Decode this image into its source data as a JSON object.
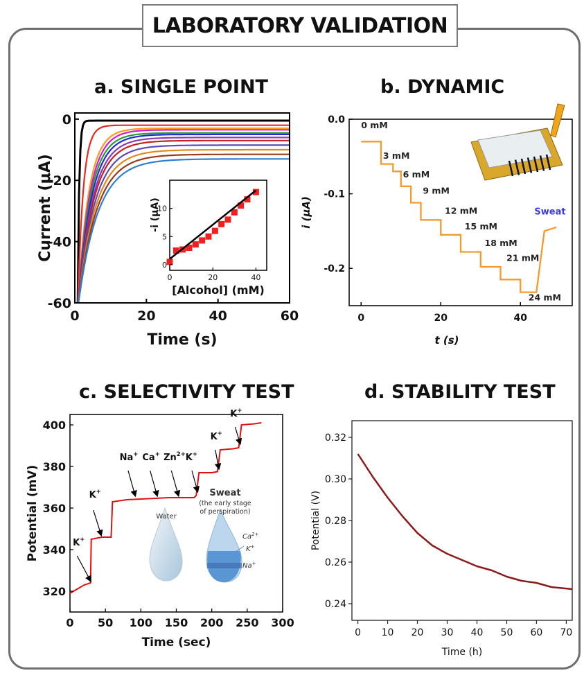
{
  "main_title": "LABORATORY VALIDATION",
  "panels": {
    "a": {
      "title": "a. SINGLE POINT"
    },
    "b": {
      "title": "b. DYNAMIC"
    },
    "c": {
      "title": "c. SELECTIVITY TEST"
    },
    "d": {
      "title": "d. STABILITY TEST"
    }
  },
  "chart_data": [
    {
      "id": "a",
      "type": "line",
      "xlabel": "Time (s)",
      "ylabel": "Current (μA)",
      "xlim": [
        0,
        60
      ],
      "ylim": [
        -60,
        2
      ],
      "xticks": [
        0,
        20,
        40,
        60
      ],
      "yticks": [
        0,
        -20,
        -40,
        -60
      ],
      "series": [
        {
          "color": "#000000",
          "steady": -0.5,
          "tau": 0.4
        },
        {
          "color": "#e8281c",
          "steady": -2.0,
          "tau": 1.5
        },
        {
          "color": "#ff9a1a",
          "steady": -3.0,
          "tau": 3.0
        },
        {
          "color": "#d11cd1",
          "steady": -3.5,
          "tau": 3.3
        },
        {
          "color": "#2b9b2b",
          "steady": -4.5,
          "tau": 3.5
        },
        {
          "color": "#1f2bd1",
          "steady": -5.0,
          "tau": 3.8
        },
        {
          "color": "#8a3ab5",
          "steady": -6.0,
          "tau": 4.1
        },
        {
          "color": "#c42020",
          "steady": -7.0,
          "tau": 4.3
        },
        {
          "color": "#5a4ab5",
          "steady": -8.5,
          "tau": 4.6
        },
        {
          "color": "#e08a1a",
          "steady": -10.0,
          "tau": 4.9
        },
        {
          "color": "#9a3a1a",
          "steady": -11.5,
          "tau": 5.2
        },
        {
          "color": "#2f7fd1",
          "steady": -13.0,
          "tau": 5.5
        }
      ],
      "inset": {
        "xlabel": "[Alcohol] (mM)",
        "ylabel": "-i (μA)",
        "xlim": [
          0,
          45
        ],
        "ylim": [
          -1,
          15
        ],
        "xticks": [
          0,
          20,
          40
        ],
        "yticks": [
          0,
          5,
          10
        ],
        "points": [
          [
            0,
            0.5
          ],
          [
            3,
            2.5
          ],
          [
            6,
            2.7
          ],
          [
            9,
            3.0
          ],
          [
            12,
            3.6
          ],
          [
            15,
            4.3
          ],
          [
            18,
            5.0
          ],
          [
            21,
            6.0
          ],
          [
            24,
            7.2
          ],
          [
            27,
            8.0
          ],
          [
            30,
            9.3
          ],
          [
            33,
            10.5
          ],
          [
            36,
            11.6
          ],
          [
            40,
            12.9
          ]
        ],
        "fit": [
          [
            0,
            1.0
          ],
          [
            40,
            13.2
          ]
        ]
      }
    },
    {
      "id": "b",
      "type": "line",
      "xlabel": "t (s)",
      "ylabel": "i (μA)",
      "xlim": [
        -3,
        53
      ],
      "ylim": [
        -0.25,
        0.0
      ],
      "xticks": [
        0,
        20,
        40
      ],
      "yticks": [
        0.0,
        -0.1,
        -0.2
      ],
      "ytick_labels": [
        "0.0",
        "-0.1",
        "-0.2"
      ],
      "color": "#f39a2c",
      "step_path": [
        [
          0,
          -0.03
        ],
        [
          5,
          -0.03
        ],
        [
          5,
          -0.06
        ],
        [
          8,
          -0.06
        ],
        [
          8,
          -0.07
        ],
        [
          10,
          -0.07
        ],
        [
          10,
          -0.09
        ],
        [
          12.5,
          -0.09
        ],
        [
          12.5,
          -0.112
        ],
        [
          15,
          -0.112
        ],
        [
          15,
          -0.135
        ],
        [
          20,
          -0.135
        ],
        [
          20,
          -0.155
        ],
        [
          25,
          -0.155
        ],
        [
          25,
          -0.178
        ],
        [
          30,
          -0.178
        ],
        [
          30,
          -0.198
        ],
        [
          35,
          -0.198
        ],
        [
          35,
          -0.215
        ],
        [
          40,
          -0.215
        ],
        [
          40,
          -0.232
        ],
        [
          44,
          -0.232
        ],
        [
          46,
          -0.15
        ],
        [
          49,
          -0.145
        ]
      ],
      "step_labels": [
        {
          "text": "0 mM",
          "x": 0,
          "y": -0.012
        },
        {
          "text": "3 mM",
          "x": 5.5,
          "y": -0.053
        },
        {
          "text": "6 mM",
          "x": 10.5,
          "y": -0.078
        },
        {
          "text": "9 mM",
          "x": 15.5,
          "y": -0.1
        },
        {
          "text": "12 mM",
          "x": 21,
          "y": -0.127
        },
        {
          "text": "15 mM",
          "x": 26,
          "y": -0.148
        },
        {
          "text": "18 mM",
          "x": 31,
          "y": -0.17
        },
        {
          "text": "21 mM",
          "x": 36.5,
          "y": -0.19
        },
        {
          "text": "24 mM",
          "x": 42,
          "y": -0.243
        }
      ],
      "annotation": {
        "text": "Sweat",
        "x": 43.5,
        "y": -0.128,
        "color": "#3a3ad8"
      }
    },
    {
      "id": "c",
      "type": "line",
      "xlabel": "Time (sec)",
      "ylabel": "Potential (mV)",
      "xlim": [
        0,
        300
      ],
      "ylim": [
        310,
        405
      ],
      "xticks": [
        0,
        50,
        100,
        150,
        200,
        250,
        300
      ],
      "yticks": [
        320,
        340,
        360,
        380,
        400
      ],
      "color": "#e01010",
      "points": [
        [
          0,
          319
        ],
        [
          10,
          321
        ],
        [
          20,
          323
        ],
        [
          29,
          324
        ],
        [
          30,
          345
        ],
        [
          45,
          346
        ],
        [
          58,
          346
        ],
        [
          60,
          363
        ],
        [
          80,
          364
        ],
        [
          110,
          364.5
        ],
        [
          140,
          365
        ],
        [
          175,
          365
        ],
        [
          178,
          366
        ],
        [
          182,
          377
        ],
        [
          200,
          377
        ],
        [
          208,
          377.5
        ],
        [
          212,
          388
        ],
        [
          230,
          388.5
        ],
        [
          238,
          389
        ],
        [
          242,
          400
        ],
        [
          260,
          400.5
        ],
        [
          270,
          401
        ]
      ],
      "annotations": [
        {
          "text": "K",
          "sup": "+",
          "x": 4,
          "y": 342
        },
        {
          "text": "K",
          "sup": "+",
          "x": 27,
          "y": 365
        },
        {
          "text": "Na",
          "sup": "+",
          "x": 70,
          "y": 383
        },
        {
          "text": "Ca",
          "sup": "+",
          "x": 102,
          "y": 383
        },
        {
          "text": "Zn",
          "sup": "2+",
          "x": 132,
          "y": 383
        },
        {
          "text": "K",
          "sup": "+",
          "x": 163,
          "y": 383
        },
        {
          "text": "K",
          "sup": "+",
          "x": 198,
          "y": 393
        },
        {
          "text": "K",
          "sup": "+",
          "x": 226,
          "y": 404
        }
      ],
      "arrows": [
        [
          10,
          337,
          29,
          325
        ],
        [
          33,
          359,
          44,
          347
        ],
        [
          82,
          378,
          92,
          366
        ],
        [
          113,
          378,
          123,
          366
        ],
        [
          143,
          378,
          153,
          366
        ],
        [
          172,
          378,
          180,
          368
        ],
        [
          205,
          388,
          210,
          379
        ],
        [
          233,
          399,
          240,
          391
        ]
      ],
      "legend": {
        "water": "Water",
        "sweat_title": "Sweat",
        "sweat_sub1": "(the early stage",
        "sweat_sub2": "of perspiration)",
        "ion1": "Ca",
        "ion1_sup": "2+",
        "ion2": "K",
        "ion2_sup": "+",
        "ion3": "Na",
        "ion3_sup": "+"
      }
    },
    {
      "id": "d",
      "type": "line",
      "xlabel": "Time (h)",
      "ylabel": "Potential (V)",
      "xlim": [
        -2,
        72
      ],
      "ylim": [
        0.232,
        0.328
      ],
      "xticks": [
        0,
        10,
        20,
        30,
        40,
        50,
        60,
        70
      ],
      "yticks": [
        0.24,
        0.26,
        0.28,
        0.3,
        0.32
      ],
      "ytick_labels": [
        "0.24",
        "0.26",
        "0.28",
        "0.30",
        "0.32"
      ],
      "color": "#8b1a1a",
      "points": [
        [
          0,
          0.312
        ],
        [
          5,
          0.301
        ],
        [
          10,
          0.291
        ],
        [
          15,
          0.282
        ],
        [
          20,
          0.274
        ],
        [
          25,
          0.268
        ],
        [
          30,
          0.264
        ],
        [
          35,
          0.261
        ],
        [
          40,
          0.258
        ],
        [
          45,
          0.256
        ],
        [
          50,
          0.253
        ],
        [
          55,
          0.251
        ],
        [
          60,
          0.25
        ],
        [
          65,
          0.248
        ],
        [
          72,
          0.247
        ]
      ]
    }
  ]
}
